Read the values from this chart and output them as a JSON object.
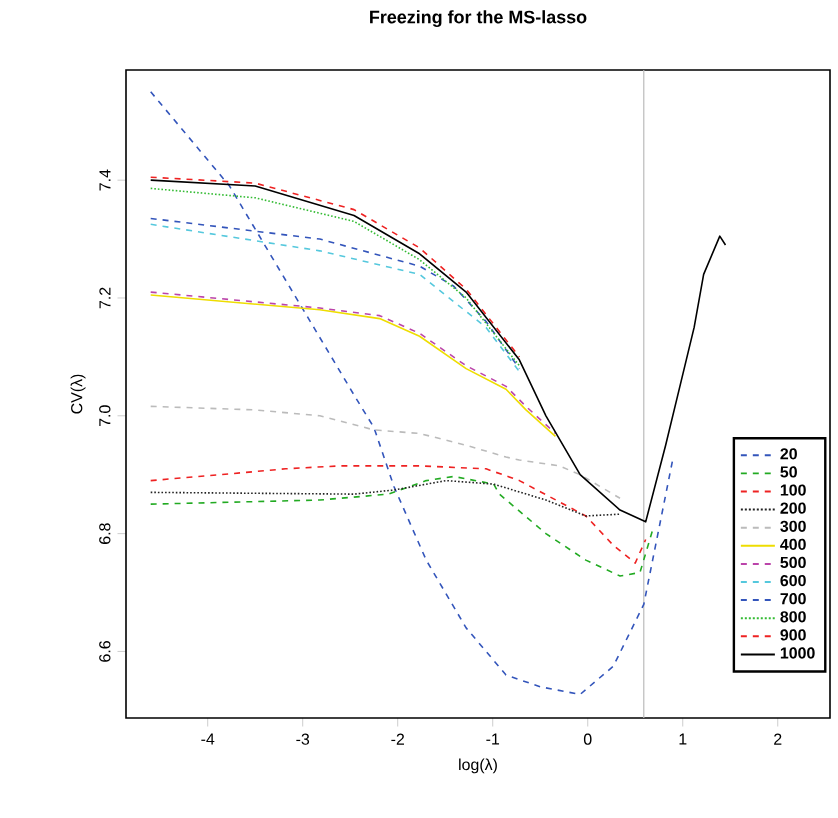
{
  "chart_data": {
    "type": "line",
    "title": "Freezing for the MS-lasso",
    "xlabel": "log(λ)",
    "ylabel": "CV(λ)",
    "xlim": [
      -4.86,
      2.55
    ],
    "ylim": [
      6.487,
      7.587
    ],
    "xticks": [
      -4,
      -3,
      -2,
      -1,
      0,
      1,
      2
    ],
    "yticks": [
      6.6,
      6.8,
      {
        "value": 7.0,
        "label": "7.0"
      },
      7.2,
      7.4
    ],
    "grid": false,
    "legend": "right",
    "ref_lines": [
      {
        "axis": "x",
        "value": 0.59,
        "color": "#bbbbbb"
      }
    ],
    "series": [
      {
        "name": "20",
        "color": "#3355bb",
        "line_style": "dashed",
        "x": [
          -4.6,
          -3.77,
          -2.44,
          -2.25,
          -2.04,
          -1.7,
          -1.28,
          -0.86,
          -0.5,
          -0.08,
          0.27,
          0.59,
          0.9
        ],
        "values": [
          7.55,
          7.39,
          7.03,
          6.98,
          6.88,
          6.755,
          6.64,
          6.56,
          6.54,
          6.527,
          6.575,
          6.68,
          6.93
        ]
      },
      {
        "name": "50",
        "color": "#22aa22",
        "line_style": "dashed",
        "x": [
          -4.6,
          -2.82,
          -2.1,
          -1.7,
          -1.41,
          -0.99,
          -0.93,
          -0.44,
          -0.02,
          0.34,
          0.55,
          0.69
        ],
        "values": [
          6.85,
          6.857,
          6.867,
          6.89,
          6.897,
          6.884,
          6.867,
          6.8,
          6.755,
          6.728,
          6.734,
          6.81
        ]
      },
      {
        "name": "100",
        "color": "#ee2222",
        "line_style": "dashed",
        "x": [
          -4.6,
          -3.87,
          -3.18,
          -2.61,
          -1.77,
          -1.07,
          -0.72,
          -0.02,
          0.27,
          0.5,
          0.61
        ],
        "values": [
          6.89,
          6.9,
          6.91,
          6.915,
          6.915,
          6.91,
          6.89,
          6.83,
          6.78,
          6.75,
          6.79
        ]
      },
      {
        "name": "200",
        "color": "#222222",
        "line_style": "dotted",
        "x": [
          -4.6,
          -2.46,
          -2.04,
          -1.49,
          -0.99,
          -0.44,
          -0.02,
          0.34
        ],
        "values": [
          6.87,
          6.867,
          6.874,
          6.89,
          6.884,
          6.857,
          6.83,
          6.833
        ]
      },
      {
        "name": "300",
        "color": "#bbbbbb",
        "line_style": "dashed",
        "x": [
          -4.6,
          -3.5,
          -2.82,
          -2.25,
          -1.77,
          -1.28,
          -0.86,
          -0.72,
          -0.3,
          -0.08,
          0.34
        ],
        "values": [
          7.016,
          7.01,
          7.0,
          6.976,
          6.97,
          6.95,
          6.93,
          6.925,
          6.915,
          6.9,
          6.86
        ]
      },
      {
        "name": "400",
        "color": "#eedd00",
        "line_style": "solid",
        "x": [
          -4.6,
          -2.82,
          -2.19,
          -1.77,
          -1.28,
          -0.86,
          -0.65,
          -0.34
        ],
        "values": [
          7.205,
          7.18,
          7.165,
          7.135,
          7.08,
          7.045,
          7.01,
          6.965
        ]
      },
      {
        "name": "500",
        "color": "#bb44aa",
        "line_style": "dashed",
        "x": [
          -4.6,
          -2.82,
          -2.19,
          -1.77,
          -1.28,
          -0.86,
          -0.65,
          -0.34
        ],
        "values": [
          7.21,
          7.183,
          7.17,
          7.14,
          7.085,
          7.05,
          7.016,
          6.97
        ]
      },
      {
        "name": "600",
        "color": "#55c8dd",
        "line_style": "dashed",
        "x": [
          -4.6,
          -2.82,
          -1.77,
          -1.07,
          -0.72
        ],
        "values": [
          7.325,
          7.28,
          7.24,
          7.15,
          7.075
        ]
      },
      {
        "name": "700",
        "color": "#3355bb",
        "line_style": "dashed",
        "x": [
          -4.6,
          -2.82,
          -1.77,
          -1.41,
          -1.07,
          -0.72
        ],
        "values": [
          7.335,
          7.3,
          7.254,
          7.22,
          7.16,
          7.08
        ]
      },
      {
        "name": "800",
        "color": "#33bb33",
        "line_style": "dotted",
        "x": [
          -4.6,
          -3.5,
          -2.46,
          -1.77,
          -1.28,
          -0.72
        ],
        "values": [
          7.386,
          7.37,
          7.33,
          7.265,
          7.2,
          7.085
        ]
      },
      {
        "name": "900",
        "color": "#ee2222",
        "line_style": "dashed",
        "x": [
          -4.6,
          -3.5,
          -2.46,
          -1.77,
          -1.28,
          -0.72
        ],
        "values": [
          7.405,
          7.395,
          7.35,
          7.285,
          7.215,
          7.1
        ]
      },
      {
        "name": "1000",
        "color": "#000000",
        "line_style": "solid",
        "x": [
          -4.6,
          -3.5,
          -2.46,
          -1.77,
          -1.28,
          -0.72,
          -0.44,
          -0.08,
          0.34,
          0.61,
          0.82,
          0.97,
          1.12,
          1.22,
          1.39,
          1.45
        ],
        "values": [
          7.4,
          7.39,
          7.34,
          7.275,
          7.21,
          7.095,
          7.0,
          6.9,
          6.84,
          6.82,
          6.95,
          7.05,
          7.15,
          7.24,
          7.305,
          7.29
        ]
      }
    ]
  }
}
